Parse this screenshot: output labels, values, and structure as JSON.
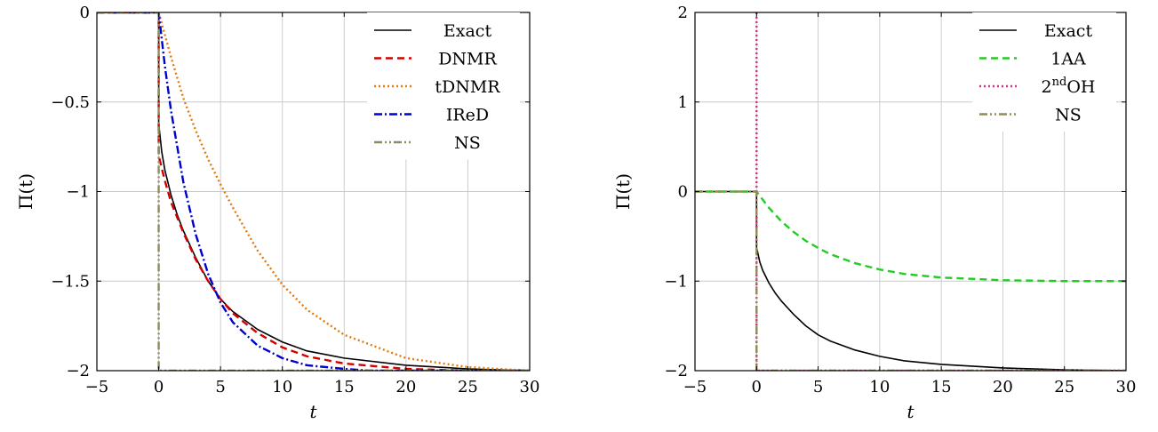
{
  "chart_data": [
    {
      "type": "line",
      "xlabel": "t",
      "ylabel": "Π(t)",
      "xlim": [
        -5,
        30
      ],
      "ylim": [
        -2,
        0
      ],
      "xticks": [
        -5,
        0,
        5,
        10,
        15,
        20,
        25,
        30
      ],
      "yticks": [
        0,
        -0.5,
        -1,
        -1.5,
        -2
      ],
      "ytick_labels": [
        "0",
        "−0.5",
        "−1",
        "−1.5",
        "−2"
      ],
      "xtick_labels": [
        "−5",
        "0",
        "5",
        "10",
        "15",
        "20",
        "25",
        "30"
      ],
      "grid": true,
      "legend_position": "top-right",
      "series": [
        {
          "name": "Exact",
          "color": "#000000",
          "dash": "solid",
          "x": [
            -5,
            0,
            0,
            0.25,
            0.5,
            1,
            1.5,
            2,
            3,
            4,
            5,
            6,
            8,
            10,
            12,
            15,
            20,
            25,
            30
          ],
          "y": [
            0,
            0,
            -0.62,
            -0.78,
            -0.88,
            -1.02,
            -1.13,
            -1.22,
            -1.37,
            -1.5,
            -1.6,
            -1.67,
            -1.77,
            -1.84,
            -1.89,
            -1.93,
            -1.97,
            -1.99,
            -2.0
          ]
        },
        {
          "name": "DNMR",
          "color": "#d40000",
          "dash": "dashed",
          "x": [
            -5,
            0,
            0,
            0.5,
            1,
            2,
            3,
            4,
            5,
            6,
            8,
            10,
            12,
            15,
            20,
            25,
            30
          ],
          "y": [
            0,
            0,
            -0.8,
            -0.94,
            -1.06,
            -1.23,
            -1.38,
            -1.5,
            -1.6,
            -1.68,
            -1.79,
            -1.87,
            -1.92,
            -1.96,
            -1.99,
            -2.0,
            -2.0
          ]
        },
        {
          "name": "tDNMR",
          "color": "#e07a10",
          "dash": "dotted",
          "x": [
            -5,
            0,
            1,
            2,
            3,
            4,
            5,
            6,
            8,
            10,
            12,
            15,
            20,
            25,
            30
          ],
          "y": [
            0,
            0,
            -0.25,
            -0.48,
            -0.66,
            -0.82,
            -0.96,
            -1.09,
            -1.33,
            -1.52,
            -1.66,
            -1.8,
            -1.93,
            -1.98,
            -2.0
          ]
        },
        {
          "name": "IReD",
          "color": "#0000cc",
          "dash": "dashdot",
          "x": [
            -5,
            0,
            0.5,
            1,
            2,
            3,
            4,
            5,
            6,
            8,
            10,
            12,
            15,
            17,
            20,
            25,
            30
          ],
          "y": [
            0,
            0,
            -0.3,
            -0.55,
            -0.95,
            -1.24,
            -1.46,
            -1.62,
            -1.73,
            -1.86,
            -1.93,
            -1.97,
            -1.99,
            -2.0,
            -2.0,
            -2.0,
            -2.0
          ]
        },
        {
          "name": "NS",
          "color": "#8f8c5a",
          "dash": "dashdotdot",
          "x": [
            -5,
            0,
            0,
            30
          ],
          "y": [
            0,
            0,
            -2,
            -2
          ]
        }
      ]
    },
    {
      "type": "line",
      "xlabel": "t",
      "ylabel": "Π(t)",
      "xlim": [
        -5,
        30
      ],
      "ylim": [
        -2,
        2
      ],
      "xticks": [
        -5,
        0,
        5,
        10,
        15,
        20,
        25,
        30
      ],
      "yticks": [
        2,
        1,
        0,
        -1,
        -2
      ],
      "ytick_labels": [
        "2",
        "1",
        "0",
        "−1",
        "−2"
      ],
      "xtick_labels": [
        "−5",
        "0",
        "5",
        "10",
        "15",
        "20",
        "25",
        "30"
      ],
      "grid": true,
      "legend_position": "top-right",
      "series": [
        {
          "name": "Exact",
          "color": "#000000",
          "dash": "solid",
          "x": [
            -5,
            0,
            0,
            0.25,
            0.5,
            1,
            1.5,
            2,
            3,
            4,
            5,
            6,
            8,
            10,
            12,
            15,
            20,
            25,
            30
          ],
          "y": [
            0,
            0,
            -0.62,
            -0.78,
            -0.88,
            -1.02,
            -1.13,
            -1.22,
            -1.37,
            -1.5,
            -1.6,
            -1.67,
            -1.77,
            -1.84,
            -1.89,
            -1.93,
            -1.97,
            -1.99,
            -2.0
          ]
        },
        {
          "name": "1AA",
          "color": "#22cc22",
          "dash": "dashed",
          "x": [
            -5,
            0,
            1,
            2,
            3,
            4,
            5,
            6,
            8,
            10,
            12,
            15,
            20,
            25,
            30
          ],
          "y": [
            0,
            0,
            -0.18,
            -0.33,
            -0.45,
            -0.55,
            -0.63,
            -0.7,
            -0.8,
            -0.87,
            -0.92,
            -0.96,
            -0.99,
            -1.0,
            -1.0
          ]
        },
        {
          "name_base": "2",
          "name_sup": "nd",
          "name_rest": "OH",
          "color": "#cc3388",
          "dash": "dotted",
          "x": [
            0,
            0,
            0,
            30
          ],
          "y": [
            2,
            2,
            -2,
            -2
          ]
        },
        {
          "name": "NS",
          "color": "#8f8c5a",
          "dash": "dashdotdot",
          "x": [
            -5,
            0,
            0,
            30
          ],
          "y": [
            0,
            0,
            -2,
            -2
          ]
        }
      ]
    }
  ]
}
